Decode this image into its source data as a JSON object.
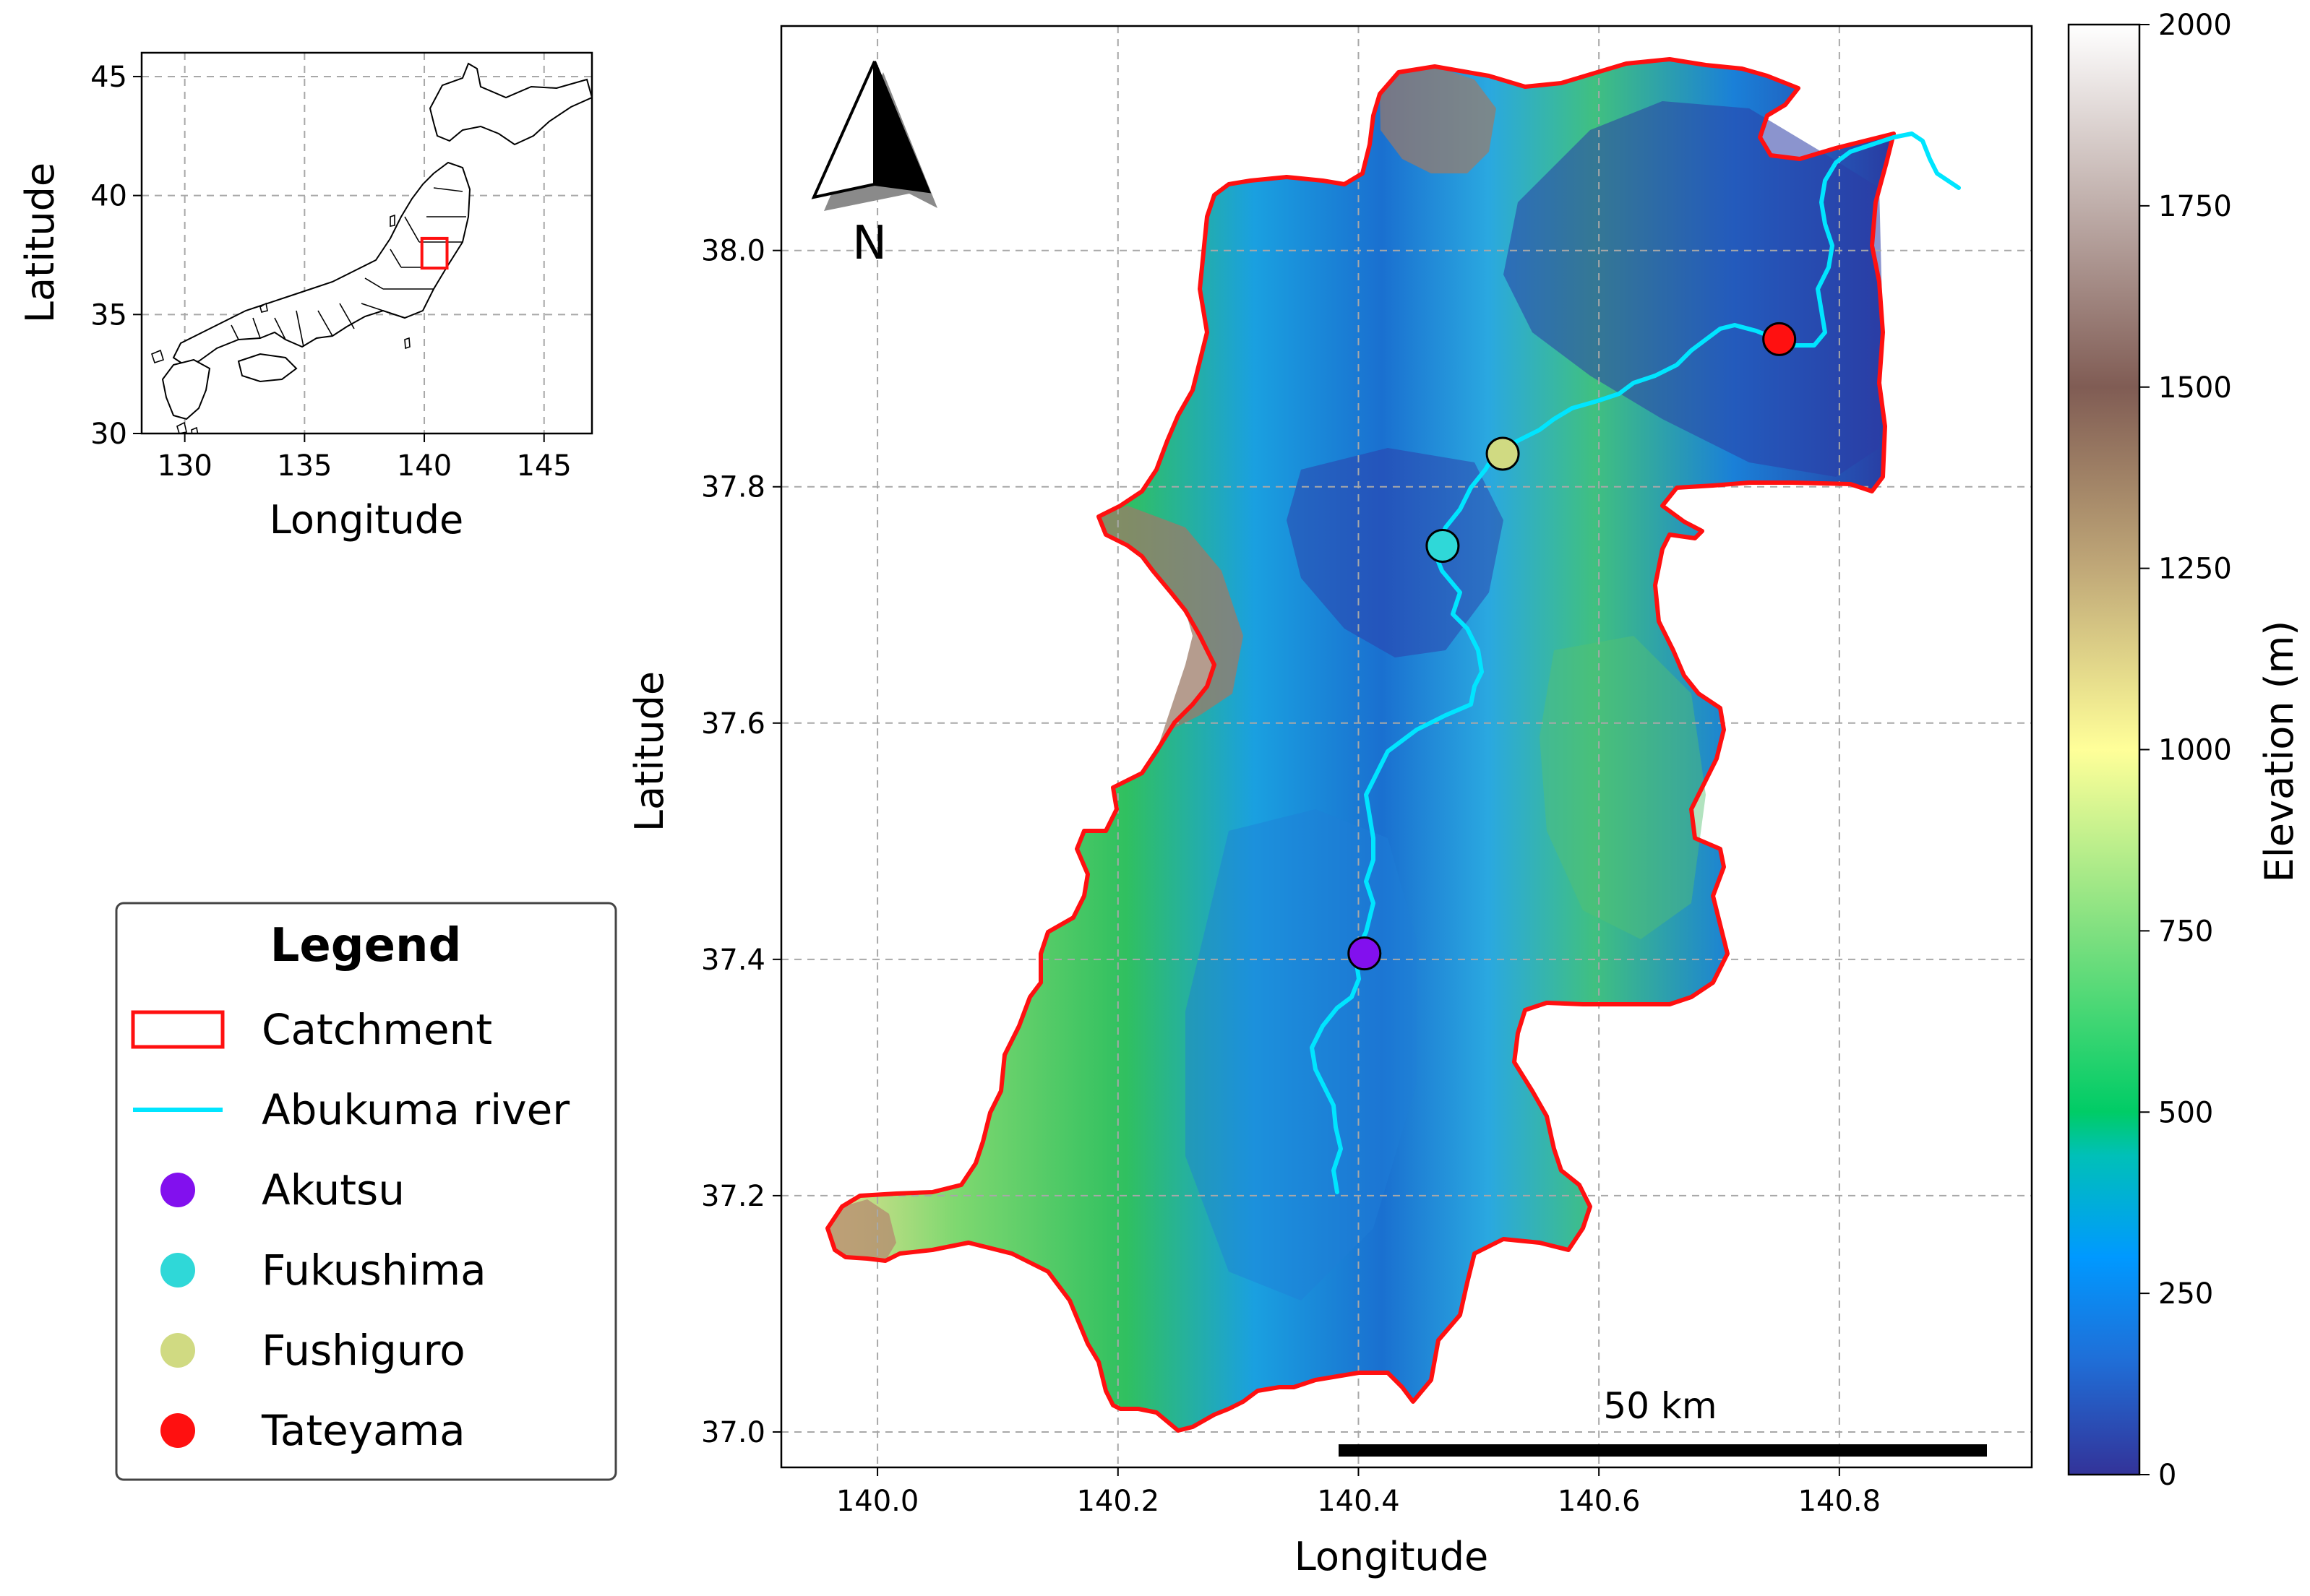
{
  "inset": {
    "xlabel": "Longitude",
    "ylabel": "Latitude",
    "xticks": [
      "130",
      "135",
      "140",
      "145"
    ],
    "yticks": [
      "30",
      "35",
      "40",
      "45"
    ],
    "xlim": [
      128.2,
      147.0
    ],
    "ylim": [
      30.0,
      46.0
    ],
    "highlight_box": {
      "lon": [
        139.9,
        140.95
      ],
      "lat": [
        36.95,
        38.2
      ]
    }
  },
  "main_map": {
    "xlabel": "Longitude",
    "ylabel": "Latitude",
    "xticks": [
      "140.0",
      "140.2",
      "140.4",
      "140.6",
      "140.8"
    ],
    "yticks": [
      "37.0",
      "37.2",
      "37.4",
      "37.6",
      "37.8",
      "38.0"
    ],
    "xlim": [
      139.92,
      140.96
    ],
    "ylim": [
      36.97,
      38.19
    ],
    "grid": true,
    "north_arrow_label": "N",
    "scale_bar_label": "50 km"
  },
  "gauges": [
    {
      "name": "Akutsu",
      "lon": 140.405,
      "lat": 37.405,
      "color": "#8210ee"
    },
    {
      "name": "Fukushima",
      "lon": 140.47,
      "lat": 37.75,
      "color": "#2fd8d8"
    },
    {
      "name": "Fushiguro",
      "lon": 140.52,
      "lat": 37.828,
      "color": "#d0da82"
    },
    {
      "name": "Tateyama",
      "lon": 140.75,
      "lat": 37.925,
      "color": "#ff1010"
    }
  ],
  "legend": {
    "title": "Legend",
    "items": [
      {
        "label": "Catchment",
        "kind": "box",
        "color": "#ff1010"
      },
      {
        "label": "Abukuma river",
        "kind": "line",
        "color": "#00e5ff"
      },
      {
        "label": "Akutsu",
        "kind": "dot",
        "color": "#8210ee"
      },
      {
        "label": "Fukushima",
        "kind": "dot",
        "color": "#2fd8d8"
      },
      {
        "label": "Fushiguro",
        "kind": "dot",
        "color": "#d0da82"
      },
      {
        "label": "Tateyama",
        "kind": "dot",
        "color": "#ff1010"
      }
    ]
  },
  "colorbar": {
    "label": "Elevation (m)",
    "ticks": [
      "0",
      "250",
      "500",
      "750",
      "1000",
      "1250",
      "1500",
      "1750",
      "2000"
    ],
    "range": [
      0,
      2000
    ],
    "colormap": "terrain"
  },
  "colors": {
    "catchment": "#ff1010",
    "river": "#00e5ff",
    "grid": "#a8a8a8"
  }
}
